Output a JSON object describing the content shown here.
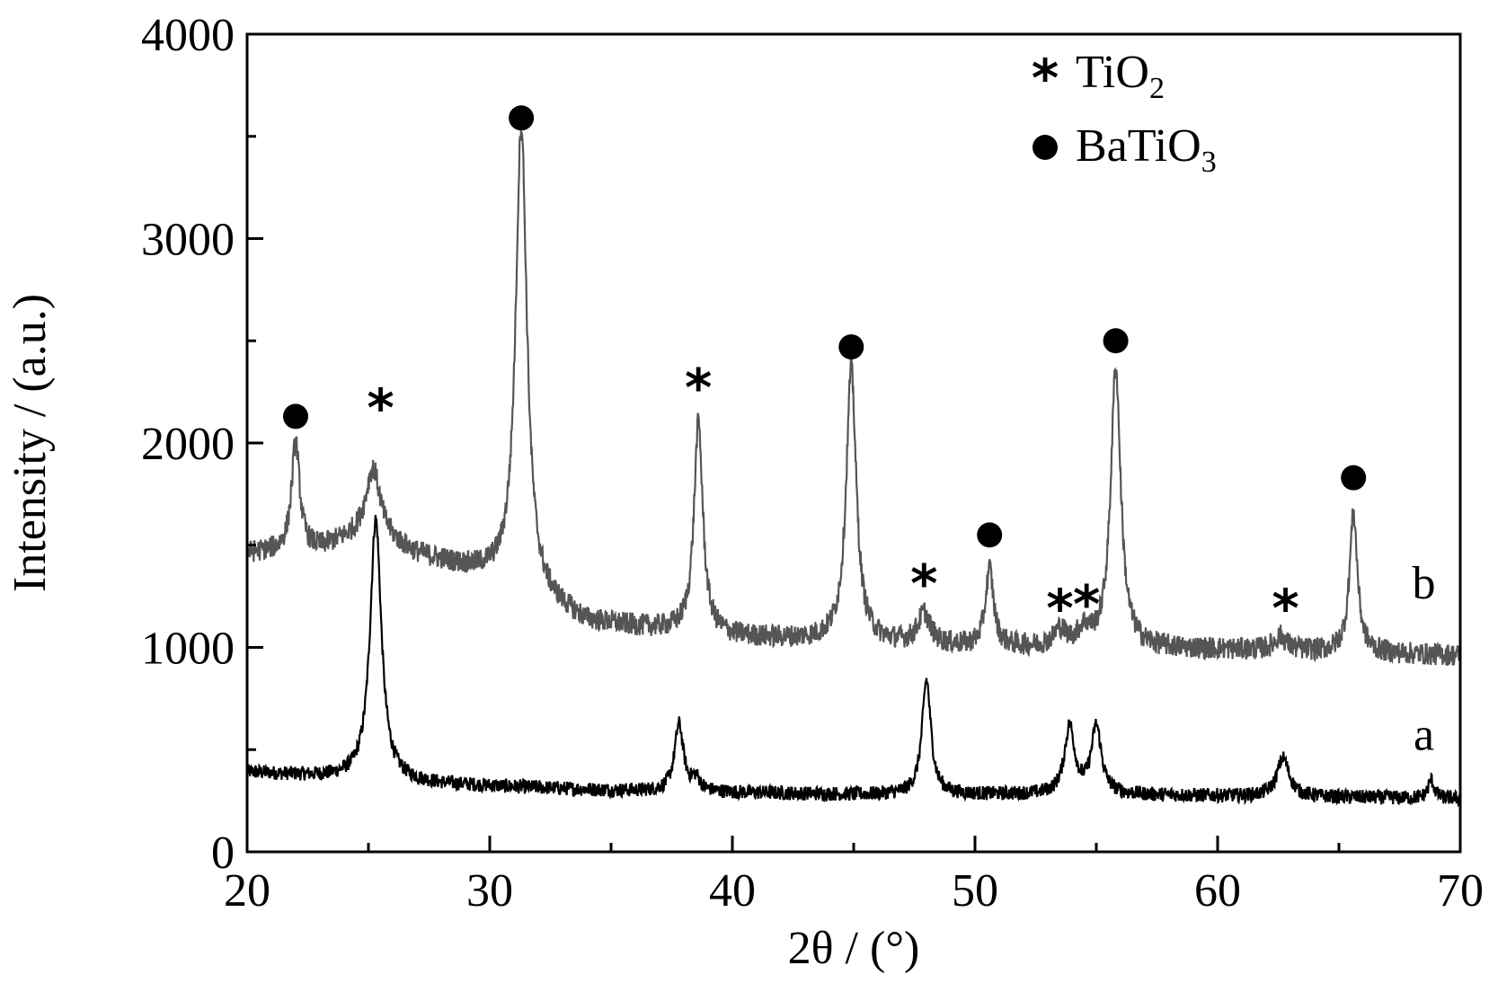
{
  "chart_data": {
    "type": "line",
    "xlabel": "2θ / (°)",
    "ylabel": "Intensity / (a.u.)",
    "xlim": [
      20,
      70
    ],
    "ylim": [
      0,
      4000
    ],
    "xticks": [
      20,
      30,
      40,
      50,
      60,
      70
    ],
    "yticks": [
      0,
      1000,
      2000,
      3000,
      4000
    ],
    "xtick_labels": [
      "20",
      "30",
      "40",
      "50",
      "60",
      "70"
    ],
    "ytick_labels": [
      "0",
      "1000",
      "2000",
      "3000",
      "4000"
    ],
    "grid": false,
    "legend": {
      "placement": "top-right",
      "entries": [
        {
          "marker": "asterisk",
          "label": "TiO",
          "subscript": "2"
        },
        {
          "marker": "filled-circle",
          "label": "BaTiO",
          "subscript": "3"
        }
      ]
    },
    "series": [
      {
        "name": "a",
        "color": "#000000",
        "baseline": [
          [
            20,
            390
          ],
          [
            24,
            360
          ],
          [
            28,
            330
          ],
          [
            35,
            300
          ],
          [
            45,
            280
          ],
          [
            55,
            280
          ],
          [
            70,
            260
          ]
        ],
        "noise": 35,
        "peaks": [
          {
            "x": 25.3,
            "height": 1280,
            "width": 0.28
          },
          {
            "x": 37.8,
            "height": 330,
            "width": 0.22
          },
          {
            "x": 38.5,
            "height": 60,
            "width": 0.2
          },
          {
            "x": 48.0,
            "height": 560,
            "width": 0.22
          },
          {
            "x": 53.9,
            "height": 330,
            "width": 0.25
          },
          {
            "x": 55.0,
            "height": 330,
            "width": 0.25
          },
          {
            "x": 62.7,
            "height": 190,
            "width": 0.3
          },
          {
            "x": 68.8,
            "height": 90,
            "width": 0.15
          }
        ]
      },
      {
        "name": "b",
        "color": "#555555",
        "baseline": [
          [
            20,
            1460
          ],
          [
            23,
            1480
          ],
          [
            25,
            1560
          ],
          [
            27,
            1450
          ],
          [
            30,
            1350
          ],
          [
            34,
            1120
          ],
          [
            40,
            1050
          ],
          [
            50,
            1000
          ],
          [
            60,
            990
          ],
          [
            70,
            960
          ]
        ],
        "noise": 55,
        "peaks": [
          {
            "x": 22.0,
            "height": 530,
            "width": 0.2
          },
          {
            "x": 25.2,
            "height": 320,
            "width": 0.35
          },
          {
            "x": 31.3,
            "height": 2280,
            "width": 0.28
          },
          {
            "x": 38.6,
            "height": 1030,
            "width": 0.22
          },
          {
            "x": 44.9,
            "height": 1340,
            "width": 0.25
          },
          {
            "x": 47.9,
            "height": 150,
            "width": 0.3
          },
          {
            "x": 50.6,
            "height": 380,
            "width": 0.2
          },
          {
            "x": 53.5,
            "height": 80,
            "width": 0.3
          },
          {
            "x": 54.5,
            "height": 80,
            "width": 0.3
          },
          {
            "x": 55.8,
            "height": 1370,
            "width": 0.25
          },
          {
            "x": 62.6,
            "height": 70,
            "width": 0.3
          },
          {
            "x": 65.6,
            "height": 680,
            "width": 0.2
          }
        ]
      }
    ],
    "annotations": {
      "circles": [
        {
          "x": 22.0,
          "y": 2130
        },
        {
          "x": 31.3,
          "y": 3590
        },
        {
          "x": 44.9,
          "y": 2470
        },
        {
          "x": 50.6,
          "y": 1550
        },
        {
          "x": 55.8,
          "y": 2500
        },
        {
          "x": 65.6,
          "y": 1830
        }
      ],
      "stars": [
        {
          "x": 25.5,
          "y": 2180
        },
        {
          "x": 38.6,
          "y": 2280
        },
        {
          "x": 47.9,
          "y": 1320
        },
        {
          "x": 53.5,
          "y": 1200
        },
        {
          "x": 54.6,
          "y": 1220
        },
        {
          "x": 62.8,
          "y": 1200
        }
      ],
      "series_labels": [
        {
          "text": "b",
          "x": 68.5,
          "y": 1240
        },
        {
          "text": "a",
          "x": 68.5,
          "y": 500
        }
      ]
    }
  }
}
